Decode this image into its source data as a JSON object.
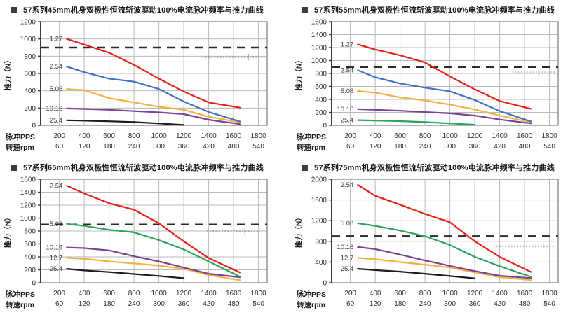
{
  "page": {
    "background": "#ffffff"
  },
  "chart_data": [
    {
      "type": "line",
      "title": "57系列45mm机身双极性恒流斩波驱动100%电流脉冲频率与推力曲线",
      "ylabel": "推力（N）",
      "xlabel_row1": "脉冲PPS",
      "xlabel_row2": "转速rpm",
      "x_ticks_pps": [
        200,
        400,
        600,
        800,
        1000,
        1200,
        1400,
        1600,
        1800
      ],
      "x_ticks_rpm": [
        60,
        120,
        180,
        240,
        300,
        360,
        420,
        480,
        540
      ],
      "xlim": [
        50,
        1870
      ],
      "ylim": [
        0,
        1200
      ],
      "ytick_step": 200,
      "dashed_line_y": 900,
      "annotation": {
        "y": 790,
        "x1": 1350,
        "x2": 1850,
        "tick_x": 1720
      },
      "grid": true,
      "legend_position": "inline-left",
      "series": [
        {
          "label": "1.27",
          "color": "#e2231a",
          "x": [
            260,
            400,
            600,
            800,
            1000,
            1200,
            1400,
            1650
          ],
          "values": [
            1000,
            935,
            840,
            700,
            540,
            390,
            265,
            205
          ]
        },
        {
          "label": "2.54",
          "color": "#4472c4",
          "x": [
            260,
            400,
            600,
            800,
            1000,
            1200,
            1400,
            1650
          ],
          "values": [
            680,
            615,
            540,
            505,
            420,
            275,
            155,
            45
          ]
        },
        {
          "label": "5.08",
          "color": "#f5b13d",
          "x": [
            260,
            400,
            600,
            800,
            1000,
            1200,
            1400,
            1650
          ],
          "values": [
            420,
            408,
            315,
            265,
            215,
            180,
            100,
            35
          ]
        },
        {
          "label": "10.16",
          "color": "#7a4397",
          "x": [
            260,
            400,
            600,
            800,
            1000,
            1200,
            1400,
            1650
          ],
          "values": [
            195,
            190,
            180,
            165,
            150,
            130,
            65,
            15
          ]
        },
        {
          "label": "25.4",
          "color": "#1c1c1c",
          "x": [
            260,
            400,
            600,
            800,
            1000,
            1200
          ],
          "values": [
            58,
            54,
            47,
            37,
            22,
            5
          ]
        }
      ]
    },
    {
      "type": "line",
      "title": "57系列55mm机身双极性恒流斩波驱动100%电流脉冲频率与推力曲线",
      "ylabel": "推力（N）",
      "xlabel_row1": "脉冲PPS",
      "xlabel_row2": "转速rpm",
      "x_ticks_pps": [
        200,
        400,
        600,
        800,
        1000,
        1200,
        1400,
        1600,
        1800
      ],
      "x_ticks_rpm": [
        60,
        120,
        180,
        240,
        300,
        360,
        420,
        480,
        540
      ],
      "xlim": [
        50,
        1870
      ],
      "ylim": [
        0,
        1600
      ],
      "ytick_step": 200,
      "dashed_line_y": 900,
      "annotation": {
        "y": 815,
        "x1": 1500,
        "x2": 1850,
        "tick_x": 1713
      },
      "grid": true,
      "legend_position": "inline-left",
      "series": [
        {
          "label": "1.27",
          "color": "#e2231a",
          "x": [
            260,
            400,
            600,
            800,
            1000,
            1200,
            1400,
            1650
          ],
          "values": [
            1250,
            1170,
            1080,
            970,
            755,
            555,
            375,
            255
          ]
        },
        {
          "label": "2.54",
          "color": "#4472c4",
          "x": [
            260,
            400,
            600,
            800,
            1000,
            1200,
            1400,
            1650
          ],
          "values": [
            850,
            740,
            645,
            580,
            525,
            390,
            220,
            60
          ]
        },
        {
          "label": "5.08",
          "color": "#f5b13d",
          "x": [
            260,
            400,
            600,
            800,
            1000,
            1200,
            1400,
            1650
          ],
          "values": [
            530,
            505,
            430,
            385,
            320,
            245,
            150,
            50
          ]
        },
        {
          "label": "10.16",
          "color": "#7a4397",
          "x": [
            260,
            400,
            600,
            800,
            1000,
            1200,
            1400,
            1650
          ],
          "values": [
            250,
            240,
            225,
            205,
            185,
            150,
            90,
            30
          ]
        },
        {
          "label": "25.4",
          "color": "#2aa45c",
          "x": [
            260,
            400,
            600,
            800,
            1000,
            1200
          ],
          "values": [
            80,
            75,
            65,
            50,
            30,
            10
          ]
        }
      ]
    },
    {
      "type": "line",
      "title": "57系列65mm机身双极性恒流斩波驱动100%电流脉冲频率与推力曲线",
      "ylabel": "推力（N）",
      "xlabel_row1": "脉冲PPS",
      "xlabel_row2": "转速rpm",
      "x_ticks_pps": [
        200,
        400,
        600,
        800,
        1000,
        1200,
        1400,
        1600,
        1800
      ],
      "x_ticks_rpm": [
        60,
        120,
        180,
        240,
        300,
        360,
        420,
        480,
        540
      ],
      "xlim": [
        50,
        1870
      ],
      "ylim": [
        0,
        1600
      ],
      "ytick_step": 200,
      "dashed_line_y": 900,
      "annotation": {
        "y": 800,
        "x1": 1385,
        "x2": 1800,
        "tick_x": 1690
      },
      "grid": true,
      "legend_position": "inline-left",
      "series": [
        {
          "label": "2.54",
          "color": "#e2231a",
          "x": [
            260,
            400,
            600,
            800,
            1000,
            1200,
            1400,
            1650
          ],
          "values": [
            1500,
            1380,
            1230,
            1130,
            920,
            640,
            380,
            160
          ]
        },
        {
          "label": "5.08",
          "color": "#2aa45c",
          "x": [
            260,
            400,
            600,
            800,
            1000,
            1200,
            1400,
            1650
          ],
          "values": [
            910,
            880,
            820,
            780,
            660,
            515,
            330,
            95
          ]
        },
        {
          "label": "10.16",
          "color": "#7a4397",
          "x": [
            260,
            400,
            600,
            800,
            1000,
            1200,
            1400,
            1650
          ],
          "values": [
            545,
            535,
            500,
            410,
            330,
            235,
            140,
            85
          ]
        },
        {
          "label": "12.7",
          "color": "#f5b13d",
          "x": [
            260,
            400,
            600,
            800,
            1000,
            1200,
            1400,
            1650
          ],
          "values": [
            385,
            370,
            330,
            300,
            265,
            215,
            120,
            40
          ]
        },
        {
          "label": "25.4",
          "color": "#1c1c1c",
          "x": [
            260,
            400,
            600,
            800,
            1000,
            1200
          ],
          "values": [
            215,
            190,
            165,
            135,
            105,
            70
          ]
        }
      ]
    },
    {
      "type": "line",
      "title": "57系列75mm机身双极性恒流斩波驱动100%电流脉冲频率与推力曲线",
      "ylabel": "推力（N）",
      "xlabel_row1": "脉冲PPS",
      "xlabel_row2": "转速rpm",
      "x_ticks_pps": [
        200,
        400,
        600,
        800,
        1000,
        1200,
        1400,
        1600,
        1800
      ],
      "x_ticks_rpm": [
        60,
        120,
        180,
        240,
        300,
        360,
        420,
        480,
        540
      ],
      "xlim": [
        50,
        1870
      ],
      "ylim": [
        0,
        2000
      ],
      "ytick_step": 400,
      "dashed_line_y": 900,
      "annotation": {
        "y": 705,
        "x1": 1350,
        "x2": 1850,
        "tick_x": 1750
      },
      "grid": true,
      "legend_position": "inline-left",
      "series": [
        {
          "label": "2.54",
          "color": "#e2231a",
          "x": [
            260,
            400,
            600,
            800,
            1000,
            1200,
            1400,
            1650
          ],
          "values": [
            1890,
            1680,
            1510,
            1330,
            1170,
            800,
            500,
            210
          ]
        },
        {
          "label": "5.08",
          "color": "#2aa45c",
          "x": [
            260,
            400,
            600,
            800,
            1000,
            1200,
            1400,
            1650
          ],
          "values": [
            1150,
            1100,
            1010,
            900,
            730,
            500,
            320,
            115
          ]
        },
        {
          "label": "10.16",
          "color": "#7a4397",
          "x": [
            260,
            400,
            600,
            800,
            1000,
            1200,
            1400,
            1650
          ],
          "values": [
            690,
            650,
            545,
            430,
            325,
            225,
            135,
            90
          ]
        },
        {
          "label": "12.7",
          "color": "#f5b13d",
          "x": [
            260,
            400,
            600,
            800,
            1000,
            1200,
            1400,
            1650
          ],
          "values": [
            480,
            455,
            400,
            350,
            295,
            200,
            110,
            50
          ]
        },
        {
          "label": "25.4",
          "color": "#1c1c1c",
          "x": [
            260,
            400,
            600,
            800,
            1000,
            1200
          ],
          "values": [
            270,
            245,
            215,
            175,
            130,
            85
          ]
        }
      ]
    }
  ],
  "style_colors": {
    "grid": "#b9b9b9",
    "plot_border": "#8f8f8f",
    "axis": "#3f3b37",
    "dashed_line": "#2f2a25",
    "tick_text": "#2d2d2d",
    "series_label_text": "#3c3c3c"
  }
}
